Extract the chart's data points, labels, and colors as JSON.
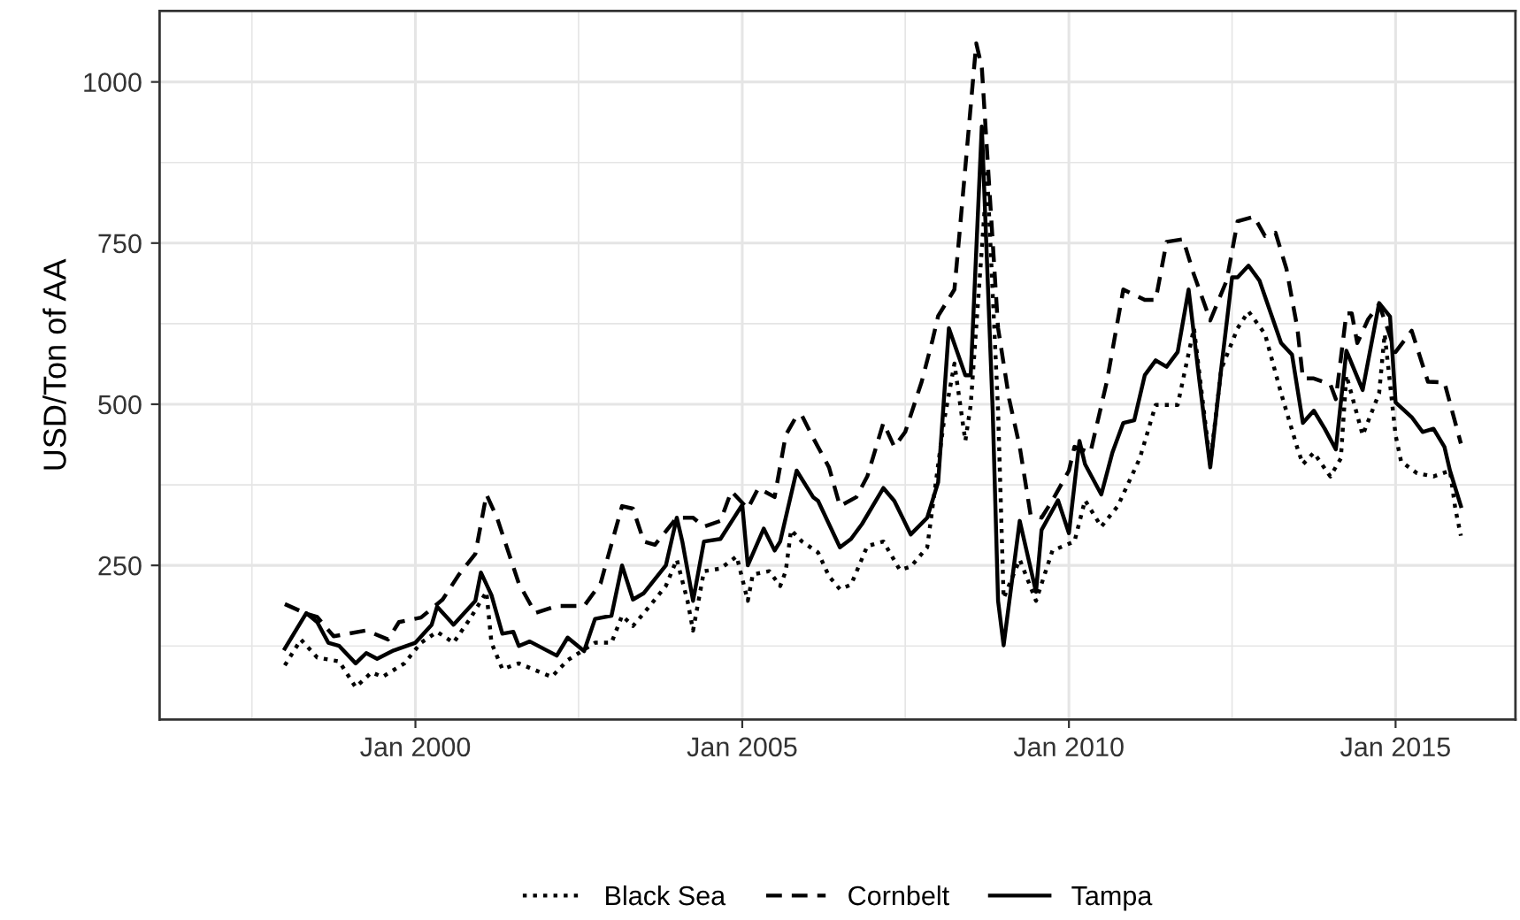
{
  "chart_data": {
    "type": "line",
    "ylabel": "USD/Ton of AA",
    "ylim": [
      11,
      1110
    ],
    "yticks": [
      {
        "value": 125,
        "label": null
      },
      250,
      {
        "value": 375,
        "label": null
      },
      500,
      {
        "value": 625,
        "label": null
      },
      750,
      {
        "value": 875,
        "label": null
      },
      1000
    ],
    "xlim": [
      "1996-02",
      "2016-11"
    ],
    "xticks": [
      {
        "value": "1997-07",
        "label": null
      },
      {
        "value": "2000-01",
        "label": "Jan 2000"
      },
      {
        "value": "2002-07",
        "label": null
      },
      {
        "value": "2005-01",
        "label": "Jan 2005"
      },
      {
        "value": "2007-07",
        "label": null
      },
      {
        "value": "2010-01",
        "label": "Jan 2010"
      },
      {
        "value": "2012-07",
        "label": null
      },
      {
        "value": "2015-01",
        "label": "Jan 2015"
      }
    ],
    "grid": true,
    "legend": "bottom",
    "marker": "none",
    "series": [
      {
        "name": "Black Sea",
        "color": "#000000",
        "line_style": "dotted",
        "x": [
          "1998-01",
          "1998-04",
          "1998-07",
          "1998-11",
          "1999-02",
          "1999-05",
          "1999-07",
          "1999-11",
          "2000-02",
          "2000-05",
          "2000-08",
          "2000-11",
          "2001-02",
          "2001-03",
          "2001-05",
          "2001-08",
          "2001-12",
          "2002-02",
          "2002-05",
          "2002-10",
          "2003-01",
          "2003-03",
          "2003-05",
          "2003-07",
          "2003-11",
          "2004-01",
          "2004-03",
          "2004-04",
          "2004-06",
          "2004-09",
          "2004-12",
          "2005-02",
          "2005-03",
          "2005-06",
          "2005-08",
          "2005-09",
          "2005-10",
          "2005-12",
          "2006-03",
          "2006-05",
          "2006-07",
          "2006-09",
          "2006-12",
          "2007-03",
          "2007-06",
          "2007-08",
          "2007-11",
          "2008-02",
          "2008-04",
          "2008-06",
          "2008-07",
          "2008-10",
          "2008-12",
          "2009-01",
          "2009-04",
          "2009-07",
          "2009-10",
          "2010-02",
          "2010-04",
          "2010-07",
          "2010-10",
          "2011-02",
          "2011-05",
          "2011-09",
          "2011-12",
          "2012-03",
          "2012-05",
          "2012-08",
          "2012-10",
          "2013-01",
          "2013-04",
          "2013-07",
          "2013-08",
          "2013-10",
          "2014-01",
          "2014-03",
          "2014-04",
          "2014-07",
          "2014-10",
          "2014-11",
          "2015-01",
          "2015-02",
          "2015-05",
          "2015-08",
          "2015-11",
          "2015-12",
          "2016-01"
        ],
        "values": [
          95,
          135,
          107,
          101,
          61,
          84,
          77,
          98,
          130,
          147,
          130,
          167,
          209,
          130,
          89,
          98,
          84,
          77,
          103,
          130,
          130,
          172,
          156,
          176,
          218,
          259,
          195,
          149,
          241,
          245,
          264,
          195,
          236,
          241,
          218,
          241,
          305,
          287,
          270,
          233,
          213,
          220,
          280,
          287,
          243,
          248,
          278,
          471,
          563,
          443,
          499,
          858,
          490,
          199,
          259,
          195,
          273,
          287,
          351,
          310,
          342,
          416,
          499,
          499,
          618,
          407,
          554,
          618,
          644,
          609,
          517,
          432,
          407,
          425,
          388,
          416,
          545,
          452,
          517,
          609,
          452,
          411,
          393,
          388,
          397,
          338,
          296
        ]
      },
      {
        "name": "Cornbelt",
        "color": "#000000",
        "line_style": "dashed",
        "x": [
          "1998-01",
          "1998-05",
          "1998-07",
          "1998-10",
          "1999-04",
          "1999-08",
          "1999-10",
          "2000-02",
          "2000-06",
          "2000-09",
          "2000-12",
          "2001-02",
          "2001-04",
          "2001-08",
          "2001-11",
          "2002-03",
          "2002-08",
          "2002-11",
          "2003-03",
          "2003-05",
          "2003-07",
          "2003-09",
          "2004-01",
          "2004-04",
          "2004-06",
          "2004-09",
          "2004-11",
          "2005-02",
          "2005-04",
          "2005-07",
          "2005-09",
          "2005-11",
          "2005-12",
          "2006-02",
          "2006-05",
          "2006-07",
          "2006-10",
          "2006-12",
          "2007-03",
          "2007-05",
          "2007-07",
          "2007-10",
          "2007-12",
          "2008-01",
          "2008-04",
          "2008-05",
          "2008-08",
          "2008-09",
          "2008-12",
          "2009-02",
          "2009-04",
          "2009-06",
          "2009-08",
          "2009-10",
          "2010-01",
          "2010-02",
          "2010-05",
          "2010-08",
          "2010-11",
          "2011-03",
          "2011-05",
          "2011-07",
          "2011-10",
          "2011-12",
          "2012-03",
          "2012-06",
          "2012-08",
          "2012-11",
          "2013-01",
          "2013-03",
          "2013-05",
          "2013-07",
          "2013-08",
          "2013-10",
          "2014-01",
          "2014-02",
          "2014-04",
          "2014-05",
          "2014-06",
          "2014-08",
          "2014-10",
          "2015-01",
          "2015-04",
          "2015-07",
          "2015-10",
          "2016-01"
        ],
        "values": [
          190,
          175,
          170,
          140,
          149,
          135,
          162,
          169,
          197,
          236,
          268,
          360,
          324,
          222,
          176,
          187,
          187,
          222,
          342,
          338,
          287,
          282,
          324,
          324,
          310,
          319,
          365,
          338,
          370,
          356,
          452,
          482,
          482,
          448,
          402,
          342,
          356,
          388,
          471,
          434,
          457,
          535,
          600,
          637,
          678,
          770,
          1060,
          1023,
          618,
          508,
          434,
          328,
          324,
          351,
          397,
          434,
          425,
          535,
          678,
          662,
          662,
          752,
          756,
          701,
          630,
          692,
          784,
          791,
          761,
          766,
          710,
          618,
          540,
          540,
          531,
          508,
          641,
          641,
          595,
          632,
          655,
          581,
          614,
          535,
          534,
          439
        ]
      },
      {
        "name": "Tampa",
        "color": "#000000",
        "line_style": "solid",
        "x": [
          "1998-01",
          "1998-05",
          "1998-07",
          "1998-09",
          "1998-11",
          "1999-02",
          "1999-04",
          "1999-06",
          "1999-09",
          "2000-01",
          "2000-04",
          "2000-05",
          "2000-08",
          "2000-12",
          "2001-01",
          "2001-03",
          "2001-05",
          "2001-07",
          "2001-08",
          "2001-10",
          "2002-03",
          "2002-05",
          "2002-08",
          "2002-10",
          "2003-01",
          "2003-03",
          "2003-05",
          "2003-07",
          "2003-11",
          "2004-01",
          "2004-02",
          "2004-04",
          "2004-06",
          "2004-09",
          "2005-01",
          "2005-02",
          "2005-05",
          "2005-07",
          "2005-08",
          "2005-11",
          "2006-02",
          "2006-03",
          "2006-07",
          "2006-09",
          "2006-11",
          "2007-03",
          "2007-05",
          "2007-08",
          "2007-11",
          "2008-01",
          "2008-03",
          "2008-06",
          "2008-07",
          "2008-09",
          "2008-11",
          "2008-12",
          "2009-01",
          "2009-04",
          "2009-07",
          "2009-08",
          "2009-11",
          "2010-01",
          "2010-03",
          "2010-04",
          "2010-07",
          "2010-09",
          "2010-11",
          "2011-01",
          "2011-03",
          "2011-05",
          "2011-07",
          "2011-09",
          "2011-11",
          "2012-01",
          "2012-03",
          "2012-05",
          "2012-07",
          "2012-08",
          "2012-10",
          "2012-12",
          "2013-04",
          "2013-06",
          "2013-08",
          "2013-10",
          "2013-12",
          "2014-02",
          "2014-04",
          "2014-07",
          "2014-10",
          "2014-12",
          "2015-01",
          "2015-04",
          "2015-06",
          "2015-08",
          "2015-10",
          "2015-11",
          "2016-01"
        ],
        "values": [
          121,
          176,
          162,
          130,
          125,
          98,
          114,
          105,
          118,
          130,
          158,
          186,
          158,
          195,
          239,
          204,
          144,
          147,
          125,
          132,
          110,
          138,
          117,
          167,
          172,
          250,
          197,
          207,
          250,
          324,
          287,
          195,
          287,
          291,
          344,
          250,
          307,
          273,
          287,
          397,
          356,
          350,
          278,
          291,
          314,
          370,
          350,
          298,
          324,
          379,
          618,
          545,
          545,
          931,
          490,
          195,
          126,
          319,
          209,
          305,
          351,
          300,
          443,
          407,
          360,
          425,
          471,
          475,
          545,
          568,
          558,
          581,
          678,
          535,
          402,
          554,
          697,
          697,
          715,
          692,
          595,
          577,
          471,
          490,
          462,
          430,
          583,
          522,
          657,
          636,
          503,
          480,
          457,
          462,
          434,
          397,
          342
        ]
      }
    ]
  }
}
